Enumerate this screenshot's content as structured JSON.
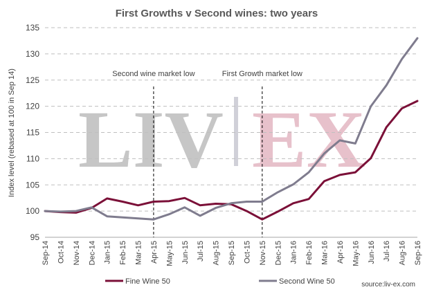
{
  "chart_data": {
    "type": "line",
    "title": "First Growths v Second wines: two years",
    "ylabel": "Index level (rebased at 100 in Sep 14)",
    "xlabel": "",
    "ylim": [
      95,
      135
    ],
    "yticks": [
      95,
      100,
      105,
      110,
      115,
      120,
      125,
      130,
      135
    ],
    "grid": true,
    "legend_position": "bottom",
    "categories": [
      "Sep-14",
      "Oct-14",
      "Nov-14",
      "Dec-14",
      "Jan-15",
      "Feb-15",
      "Mar-15",
      "Apr-15",
      "May-15",
      "Jun-15",
      "Jul-15",
      "Aug-15",
      "Sep-15",
      "Oct-15",
      "Nov-15",
      "Dec-15",
      "Jan-16",
      "Feb-16",
      "Mar-16",
      "Apr-16",
      "May-16",
      "Jun-16",
      "Jul-16",
      "Aug-16",
      "Sep-16"
    ],
    "series": [
      {
        "name": "Fine Wine 50",
        "color": "#7b1038",
        "values": [
          100.0,
          99.8,
          99.7,
          100.6,
          102.4,
          101.8,
          101.1,
          101.8,
          101.9,
          102.5,
          101.1,
          101.4,
          101.3,
          100.0,
          98.4,
          99.9,
          101.5,
          102.3,
          105.7,
          106.9,
          107.4,
          110.1,
          116.0,
          119.6,
          121.0
        ]
      },
      {
        "name": "Second Wine 50",
        "color": "#7f7c8e",
        "values": [
          100.0,
          99.9,
          100.0,
          100.7,
          99.0,
          98.8,
          98.6,
          98.4,
          99.4,
          100.7,
          99.1,
          100.6,
          101.5,
          101.8,
          101.8,
          103.6,
          105.1,
          107.4,
          111.0,
          113.5,
          112.9,
          120.0,
          124.0,
          129.0,
          133.0
        ]
      }
    ],
    "annotations": [
      {
        "text": "Second wine market low",
        "x": "Apr-15"
      },
      {
        "text": "First Growth market low",
        "x": "Nov-15"
      }
    ],
    "source": "source:liv-ex.com"
  },
  "watermark": {
    "parts": [
      {
        "text": "LIV",
        "color": "#bdbdbd"
      },
      {
        "text": "EX",
        "color": "#e3b7c3"
      }
    ]
  }
}
